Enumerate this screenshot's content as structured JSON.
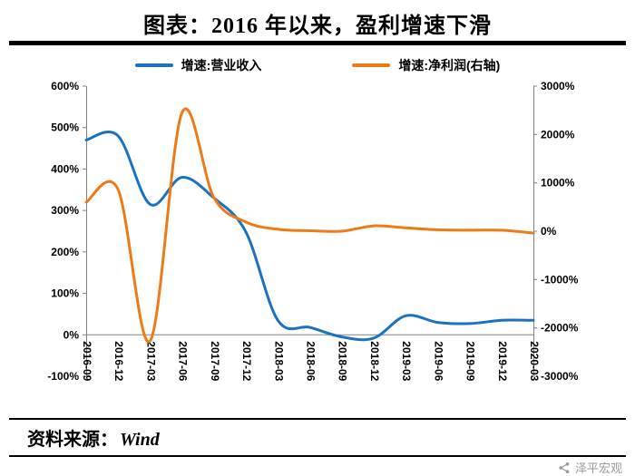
{
  "page": {
    "title": "图表：2016 年以来，盈利增速下滑",
    "footer": {
      "source_label": "资料来源：",
      "source_value": "Wind",
      "brand": "泽平宏观"
    }
  },
  "chart_data": {
    "type": "line",
    "title": "图表：2016 年以来，盈利增速下滑",
    "legend_position": "top",
    "grid": false,
    "smooth": true,
    "categories": [
      "2016-09",
      "2016-12",
      "2017-03",
      "2017-06",
      "2017-09",
      "2017-12",
      "2018-03",
      "2018-06",
      "2018-09",
      "2018-12",
      "2019-03",
      "2019-06",
      "2019-09",
      "2019-12",
      "2020-03"
    ],
    "left_axis": {
      "min": -100,
      "max": 600,
      "step": 100,
      "suffix": "%",
      "ticks": [
        "600%",
        "500%",
        "400%",
        "300%",
        "200%",
        "100%",
        "0%",
        "-100%"
      ]
    },
    "right_axis": {
      "min": -3000,
      "max": 3000,
      "step": 1000,
      "suffix": "%",
      "ticks": [
        "3000%",
        "2000%",
        "1000%",
        "0%",
        "-1000%",
        "-2000%",
        "-3000%"
      ]
    },
    "series": [
      {
        "name": "增速:营业收入",
        "axis": "left",
        "color": "#1C72C2",
        "values": [
          470,
          480,
          315,
          380,
          330,
          248,
          35,
          18,
          -5,
          -8,
          46,
          30,
          27,
          35,
          35
        ]
      },
      {
        "name": "增速:净利润(右轴)",
        "axis": "right",
        "color": "#EE7A18",
        "values": [
          600,
          860,
          -2270,
          2450,
          690,
          190,
          40,
          10,
          0,
          110,
          70,
          30,
          20,
          20,
          -40
        ]
      }
    ]
  }
}
